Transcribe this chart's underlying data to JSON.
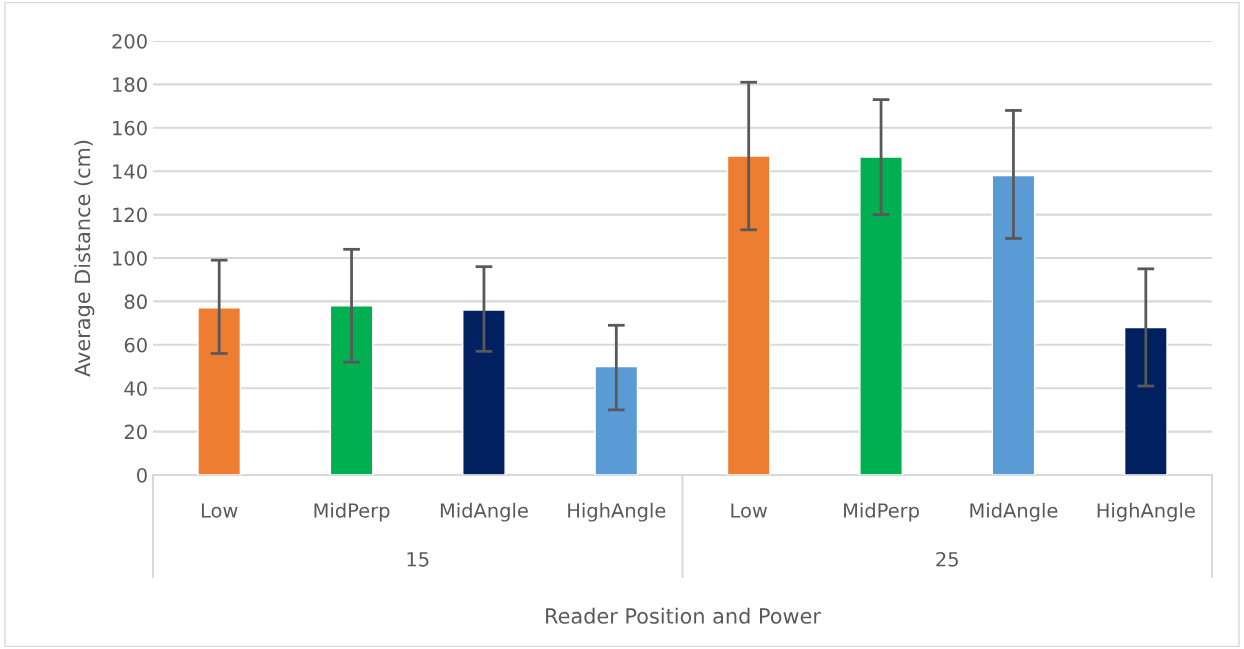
{
  "chart_data": {
    "type": "bar",
    "xlabel": "Reader Position and Power",
    "ylabel": "Average Distance (cm)",
    "categories": [
      "Low",
      "MidPerp",
      "MidAngle",
      "HighAngle",
      "Low",
      "MidPerp",
      "MidAngle",
      "HighAngle"
    ],
    "values": [
      77,
      78,
      76,
      50,
      147,
      146.5,
      138,
      68
    ],
    "colors": [
      "#ed7d31",
      "#00b050",
      "#002060",
      "#5b9bd5",
      "#ed7d31",
      "#00b050",
      "#5b9bd5",
      "#002060"
    ],
    "errors": [
      [
        56,
        99
      ],
      [
        52,
        104
      ],
      [
        57,
        96
      ],
      [
        30,
        69
      ],
      [
        113,
        181
      ],
      [
        120,
        173
      ],
      [
        109,
        168
      ],
      [
        41,
        95
      ]
    ],
    "annotations": [
      "15",
      "25"
    ],
    "ylim": [
      0,
      200
    ],
    "yticks": [
      0,
      20,
      40,
      60,
      80,
      100,
      120,
      140,
      160,
      180,
      200
    ],
    "grid": "y"
  }
}
